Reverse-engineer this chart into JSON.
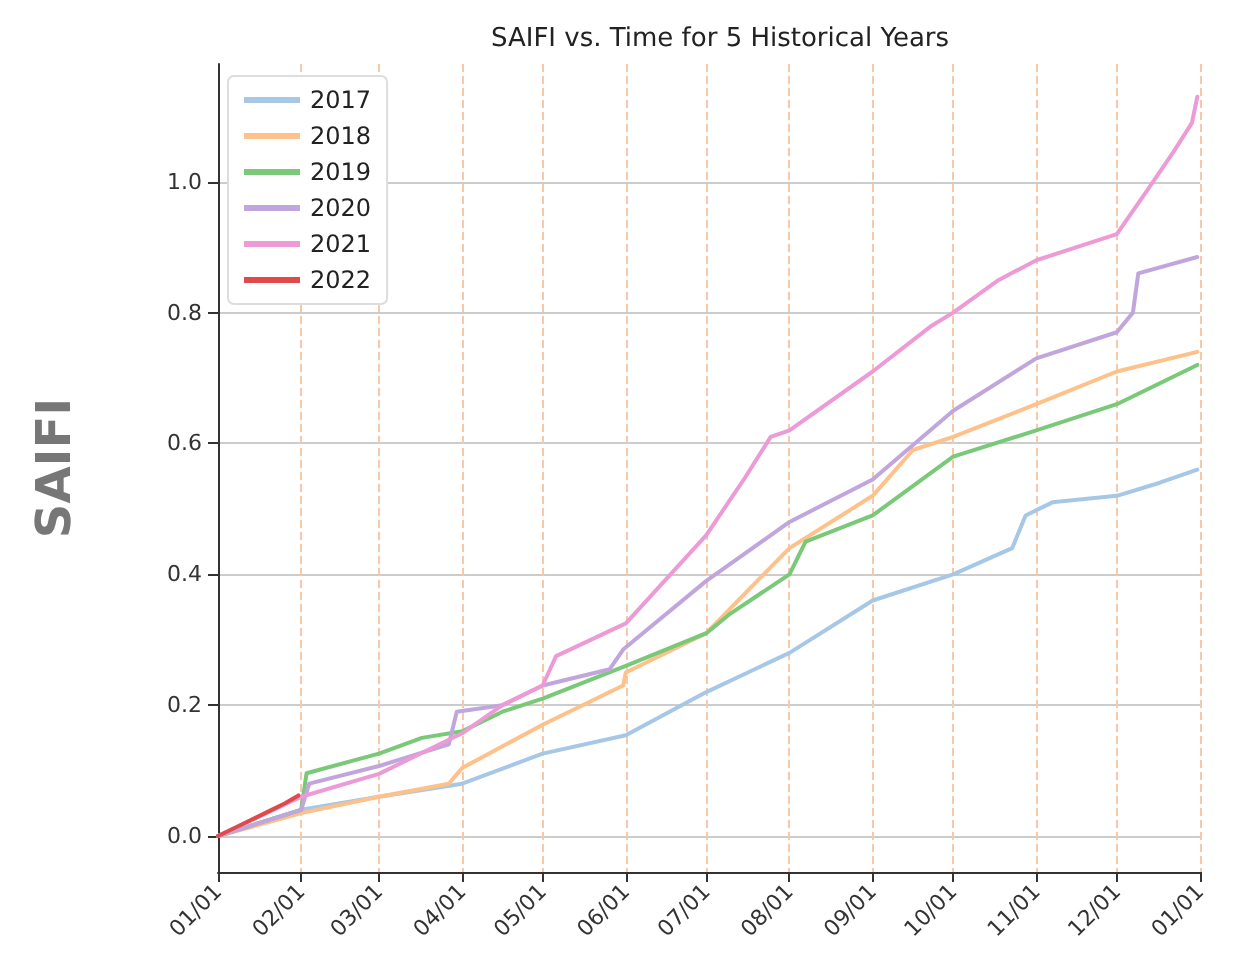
{
  "chart_data": {
    "type": "line",
    "title": "SAIFI vs. Time for 5 Historical Years",
    "ylabel": "SAIFI",
    "xlim": [
      "--01-01",
      "--12-31T23:59"
    ],
    "ylim": [
      -0.055,
      1.18
    ],
    "xticks": [
      {
        "value": "--01-01",
        "label": "01/01"
      },
      {
        "value": "--02-01",
        "label": "02/01"
      },
      {
        "value": "--03-01",
        "label": "03/01"
      },
      {
        "value": "--04-01",
        "label": "04/01"
      },
      {
        "value": "--05-01",
        "label": "05/01"
      },
      {
        "value": "--06-01",
        "label": "06/01"
      },
      {
        "value": "--07-01",
        "label": "07/01"
      },
      {
        "value": "--08-01",
        "label": "08/01"
      },
      {
        "value": "--09-01",
        "label": "09/01"
      },
      {
        "value": "--10-01",
        "label": "10/01"
      },
      {
        "value": "--11-01",
        "label": "11/01"
      },
      {
        "value": "--12-01",
        "label": "12/01"
      },
      {
        "value": "--12-31T23:59",
        "label": "01/01"
      }
    ],
    "yticks": [
      {
        "value": 0,
        "label": "0.0"
      },
      {
        "value": 0.2,
        "label": "0.2"
      },
      {
        "value": 0.4,
        "label": "0.4"
      },
      {
        "value": 0.6,
        "label": "0.6"
      },
      {
        "value": 0.8,
        "label": "0.8"
      },
      {
        "value": 1,
        "label": "1.0"
      }
    ],
    "grid": true,
    "legend": "top left",
    "marker": "none",
    "line_style": "solid",
    "series": [
      {
        "name": "2017",
        "color": "#a6c8e6",
        "x": [
          "--01-01",
          "--02-01",
          "--03-01",
          "--04-01",
          "--05-01",
          "--06-01",
          "--07-01",
          "--08-01",
          "--09-01",
          "--10-01",
          "--10-23",
          "--10-28",
          "--11-07",
          "--12-01",
          "--12-17",
          "--12-31"
        ],
        "values": [
          0,
          0.04,
          0.06,
          0.08,
          0.126,
          0.154,
          0.22,
          0.28,
          0.36,
          0.4,
          0.44,
          0.49,
          0.51,
          0.52,
          0.54,
          0.56
        ]
      },
      {
        "name": "2018",
        "color": "#ffc18a",
        "x": [
          "--01-01",
          "--02-01",
          "--03-01",
          "--03-27",
          "--04-01",
          "--05-01",
          "--05-31",
          "--06-01",
          "--07-01",
          "--07-20",
          "--08-01",
          "--09-01",
          "--09-16",
          "--10-01",
          "--11-01",
          "--12-01",
          "--12-31"
        ],
        "values": [
          0,
          0.035,
          0.06,
          0.08,
          0.104,
          0.17,
          0.23,
          0.25,
          0.31,
          0.39,
          0.44,
          0.52,
          0.59,
          0.61,
          0.66,
          0.71,
          0.74
        ]
      },
      {
        "name": "2019",
        "color": "#79c979",
        "x": [
          "--01-01",
          "--02-01",
          "--02-03",
          "--03-01",
          "--03-17",
          "--04-01",
          "--04-16",
          "--05-01",
          "--06-01",
          "--07-01",
          "--07-10",
          "--08-01",
          "--08-07",
          "--09-01",
          "--10-01",
          "--11-01",
          "--12-01",
          "--12-31"
        ],
        "values": [
          0,
          0.04,
          0.096,
          0.126,
          0.15,
          0.16,
          0.19,
          0.21,
          0.26,
          0.31,
          0.34,
          0.4,
          0.45,
          0.49,
          0.58,
          0.62,
          0.66,
          0.72
        ]
      },
      {
        "name": "2020",
        "color": "#c1a6dd",
        "x": [
          "--01-01",
          "--02-01",
          "--02-04",
          "--03-01",
          "--03-27",
          "--03-30",
          "--04-16",
          "--05-01",
          "--05-26",
          "--05-31",
          "--07-01",
          "--08-01",
          "--09-01",
          "--10-01",
          "--11-01",
          "--12-01",
          "--12-07",
          "--12-09",
          "--12-31"
        ],
        "values": [
          0,
          0.04,
          0.08,
          0.107,
          0.14,
          0.19,
          0.2,
          0.23,
          0.255,
          0.285,
          0.39,
          0.48,
          0.545,
          0.65,
          0.73,
          0.77,
          0.8,
          0.86,
          0.885
        ]
      },
      {
        "name": "2021",
        "color": "#ec9bd6",
        "x": [
          "--01-01",
          "--02-01",
          "--03-01",
          "--04-01",
          "--04-16",
          "--05-01",
          "--05-06",
          "--06-01",
          "--07-01",
          "--07-15",
          "--07-25",
          "--08-01",
          "--09-01",
          "--09-23",
          "--10-01",
          "--10-18",
          "--11-01",
          "--12-01",
          "--12-12",
          "--12-22",
          "--12-29",
          "--12-31"
        ],
        "values": [
          0,
          0.06,
          0.095,
          0.157,
          0.2,
          0.23,
          0.275,
          0.325,
          0.46,
          0.545,
          0.61,
          0.62,
          0.71,
          0.78,
          0.8,
          0.85,
          0.88,
          0.92,
          0.985,
          1.045,
          1.09,
          1.13
        ]
      },
      {
        "name": "2022",
        "color": "#e04a4a",
        "x": [
          "--01-01",
          "--01-11",
          "--01-21",
          "--01-26",
          "--01-31"
        ],
        "values": [
          0,
          0.02,
          0.04,
          0.05,
          0.062
        ]
      }
    ]
  }
}
